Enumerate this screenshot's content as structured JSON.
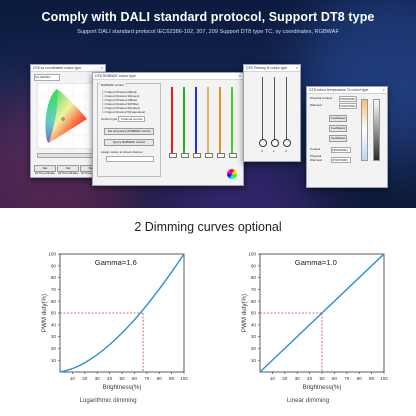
{
  "header": {
    "title": "Comply with DALI standard protocol, Support DT8 type",
    "subtitle": "Support DALI standard protocol IEC62386-102, 207, 209 Support DT8 type TC, xy coordinates, RGBWAF"
  },
  "windows": {
    "xy": {
      "title": "DT8 xy coordinates colour type",
      "dropdown": "0:0 (MASK)",
      "buttons": [
        "Set 0xYCoordinate",
        "Set 0xYCoordinate",
        "Set 0xYCoordinate"
      ]
    },
    "rgbwaf": {
      "title": "DT8 RGBWAF colour type",
      "section": "RGBWAF control",
      "channels": [
        "Output Channel 0(Red)",
        "Output Channel 1(Green)",
        "Output Channel 2(Blue)",
        "Output Channel 3(White)",
        "Output Channel 4(Amber)",
        "Output Channel 5(Freecolour)"
      ],
      "control_label": "Control type",
      "control_value": "Channel control",
      "buttons": [
        "Set temporary RGBWAF control",
        "Query RGBWAF control"
      ],
      "note": "Assign colour to linked channel"
    },
    "primary": {
      "title": "DT8 Primary N colour type",
      "labels": [
        "0",
        "1",
        "2"
      ]
    },
    "tc": {
      "title": "DT8 colour temperature Tc colour type",
      "physical_coolest_label": "Physical Coolest",
      "physical_coolest_value": "156(6400K)",
      "warmest_label": "Warmest",
      "warmest_value": "370(2700K)",
      "buttons": [
        "CoolSelect",
        "CoolSelect",
        "CoolSelect"
      ],
      "coolest_label": "Coolest",
      "coolest_value": "156(6400K)",
      "physical_warmest_label": "Physical Warmest",
      "physical_warmest_value": "370(2700K)"
    }
  },
  "section": {
    "title": "2 Dimming curves optional"
  },
  "chart_data": [
    {
      "type": "line",
      "title": "Gamma=1.6",
      "xlabel": "Brightness(%)",
      "ylabel": "PWM duty(%)",
      "xlim": [
        0,
        100
      ],
      "ylim": [
        0,
        100
      ],
      "x_ticks": [
        10,
        20,
        30,
        40,
        50,
        60,
        70,
        80,
        90,
        100
      ],
      "y_ticks": [
        10,
        20,
        30,
        40,
        50,
        60,
        70,
        80,
        90,
        100
      ],
      "series": [
        {
          "x": [
            0,
            10,
            20,
            30,
            40,
            50,
            60,
            70,
            80,
            90,
            100
          ],
          "y": [
            0,
            2.5,
            7.6,
            14.5,
            23,
            33,
            44,
            56.5,
            70,
            84.5,
            100
          ]
        }
      ],
      "marker": {
        "x": 67,
        "y": 50
      },
      "caption": "Logarithmic dimming",
      "color": "#2a8fd6"
    },
    {
      "type": "line",
      "title": "Gamma=1.0",
      "xlabel": "Brightness(%)",
      "ylabel": "PWM duty(%)",
      "xlim": [
        0,
        100
      ],
      "ylim": [
        0,
        100
      ],
      "x_ticks": [
        10,
        20,
        30,
        40,
        50,
        60,
        70,
        80,
        90,
        100
      ],
      "y_ticks": [
        10,
        20,
        30,
        40,
        50,
        60,
        70,
        80,
        90,
        100
      ],
      "series": [
        {
          "x": [
            0,
            100
          ],
          "y": [
            0,
            100
          ]
        }
      ],
      "marker": {
        "x": 50,
        "y": 50
      },
      "caption": "Linear dimming",
      "color": "#2a8fd6"
    }
  ]
}
